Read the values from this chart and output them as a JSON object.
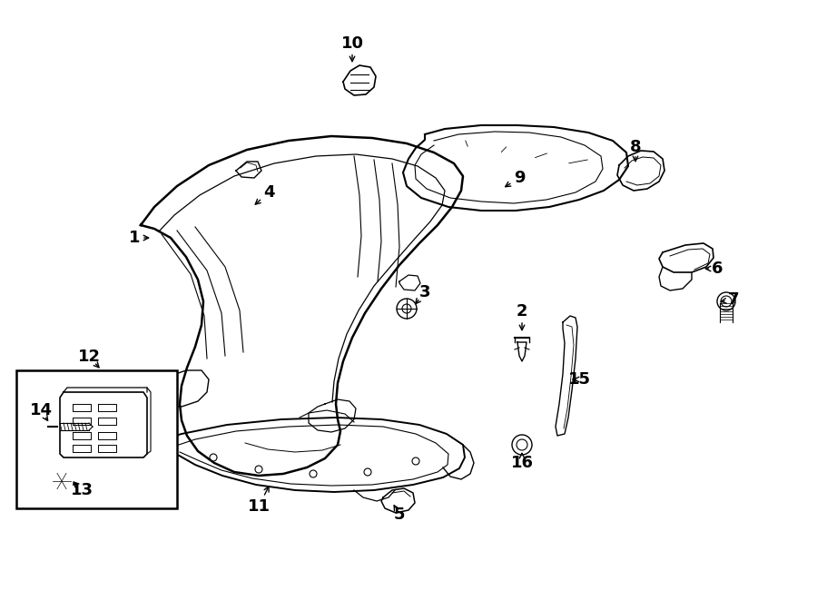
{
  "background_color": "#ffffff",
  "line_color": "#000000",
  "figsize": [
    9.0,
    6.61
  ],
  "dpi": 100,
  "annotations": [
    [
      "1",
      148,
      262,
      168,
      262
    ],
    [
      "2",
      575,
      343,
      575,
      368
    ],
    [
      "3",
      468,
      322,
      455,
      338
    ],
    [
      "4",
      296,
      212,
      278,
      228
    ],
    [
      "5",
      440,
      567,
      432,
      553
    ],
    [
      "6",
      790,
      296,
      773,
      296
    ],
    [
      "7",
      808,
      330,
      790,
      333
    ],
    [
      "8",
      700,
      162,
      700,
      182
    ],
    [
      "9",
      572,
      196,
      553,
      208
    ],
    [
      "10",
      388,
      48,
      388,
      72
    ],
    [
      "11",
      285,
      558,
      298,
      532
    ],
    [
      "12",
      98,
      393,
      112,
      408
    ],
    [
      "13",
      90,
      540,
      78,
      528
    ],
    [
      "14",
      45,
      452,
      55,
      467
    ],
    [
      "15",
      638,
      418,
      628,
      418
    ],
    [
      "16",
      575,
      510,
      575,
      495
    ]
  ]
}
